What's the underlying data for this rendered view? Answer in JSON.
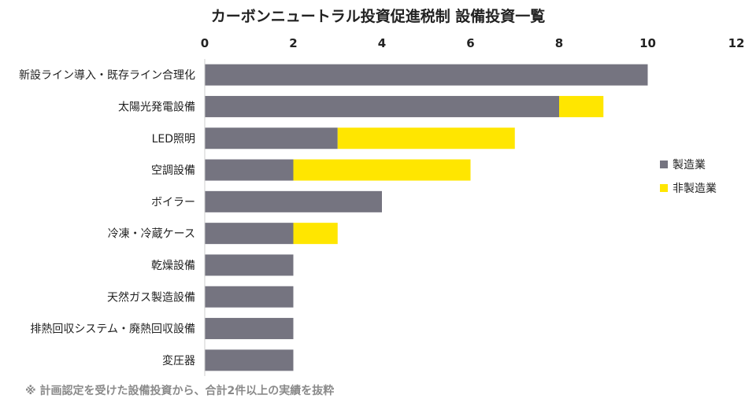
{
  "chart_data": {
    "type": "bar",
    "orientation": "horizontal",
    "stacked": true,
    "title": "カーボンニュートラル投資促進税制 設備投資一覧",
    "categories": [
      "新設ライン導入・既存ライン合理化",
      "太陽光発電設備",
      "LED照明",
      "空調設備",
      "ボイラー",
      "冷凍・冷蔵ケース",
      "乾燥設備",
      "天然ガス製造設備",
      "排熱回収システム・廃熱回収設備",
      "変圧器"
    ],
    "series": [
      {
        "name": "製造業",
        "color": "#757480",
        "values": [
          10,
          8,
          3,
          2,
          4,
          2,
          2,
          2,
          2,
          2
        ]
      },
      {
        "name": "非製造業",
        "color": "#FFE600",
        "values": [
          0,
          1,
          4,
          4,
          0,
          1,
          0,
          0,
          0,
          0
        ]
      }
    ],
    "xlim": [
      0,
      12
    ],
    "xticks": [
      0,
      2,
      4,
      6,
      8,
      10,
      12
    ],
    "axis_position": "top",
    "grid": false,
    "legend_position": "right"
  },
  "footnote": "※ 計画認定を受けた設備投資から、合計2件以上の実績を抜粋"
}
